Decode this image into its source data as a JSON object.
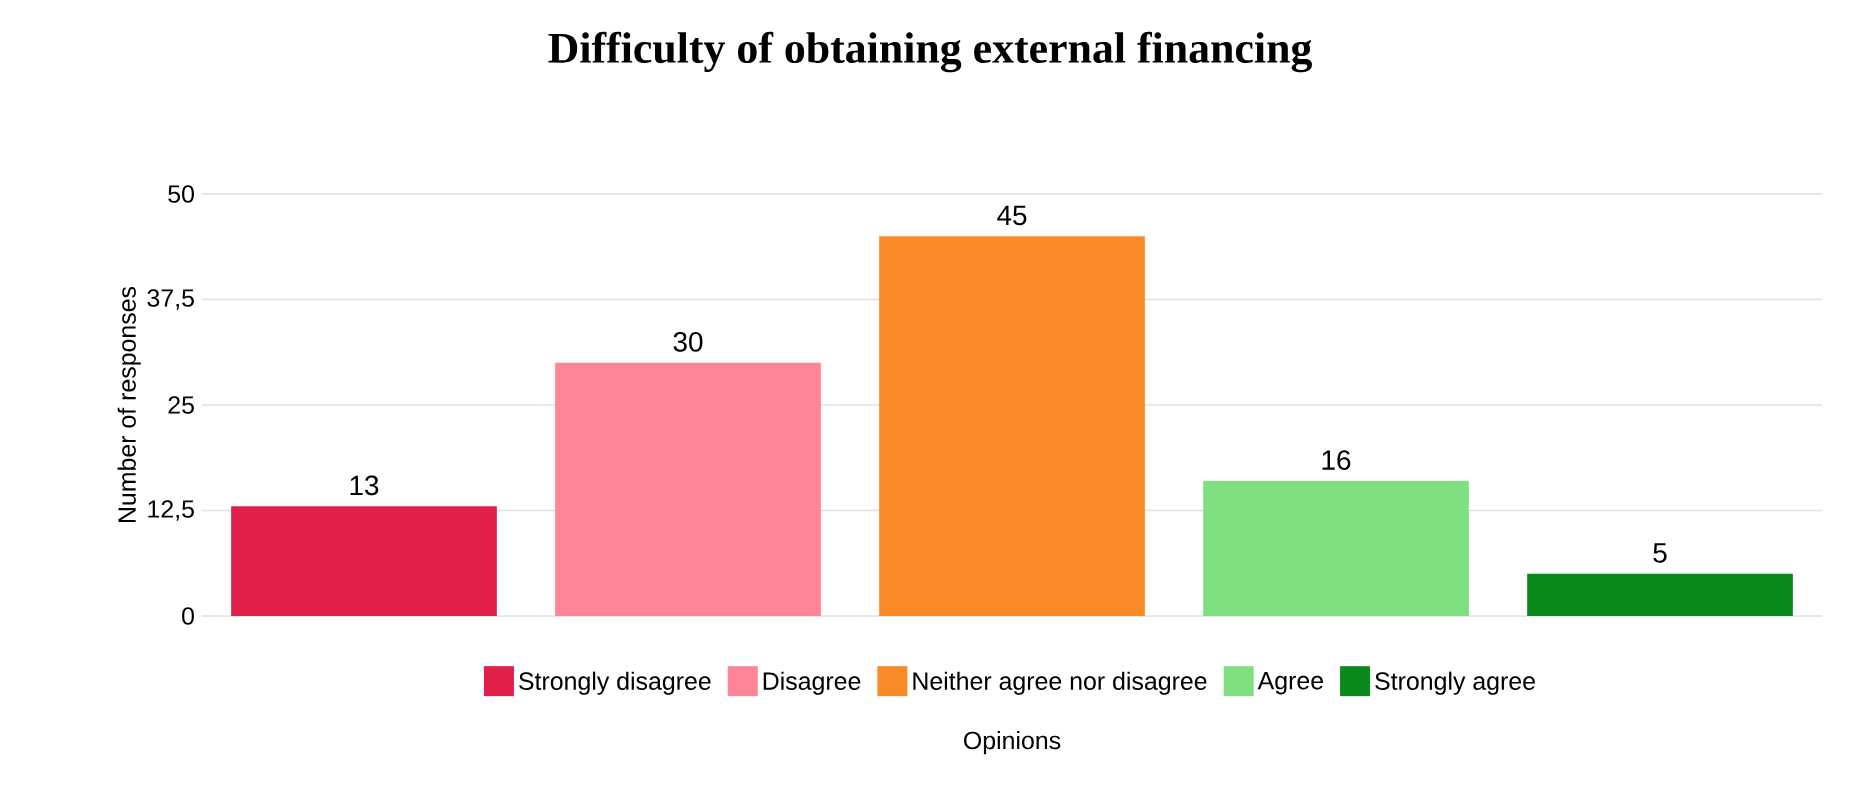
{
  "chart_data": {
    "type": "bar",
    "title": "Difficulty of obtaining external financing",
    "xlabel": "Opinions",
    "ylabel": "Number of responses",
    "categories": [
      null
    ],
    "series": [
      {
        "name": "Strongly disagree",
        "color": "#e2214b",
        "values": [
          13
        ]
      },
      {
        "name": "Disagree",
        "color": "#ff8498",
        "values": [
          30
        ]
      },
      {
        "name": "Neither agree nor disagree",
        "color": "#fa8a27",
        "values": [
          45
        ]
      },
      {
        "name": "Agree",
        "color": "#7ee07e",
        "values": [
          16
        ]
      },
      {
        "name": "Strongly agree",
        "color": "#0a8a1d",
        "values": [
          5
        ]
      }
    ],
    "ylim": [
      0,
      50
    ],
    "yticks": [
      0,
      {
        "value": 12.5,
        "label": "12,5"
      },
      25,
      {
        "value": 37.5,
        "label": "37,5"
      },
      50
    ],
    "grid": "y",
    "legend": "bottom",
    "data_labels": true
  }
}
